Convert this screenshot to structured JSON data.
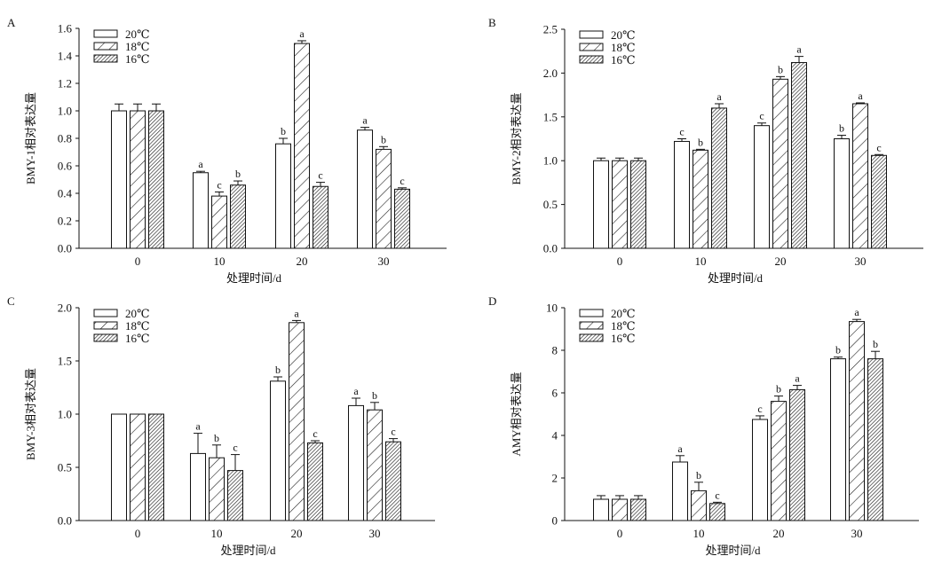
{
  "chart_data": [
    {
      "panel_label": "A",
      "type": "bar",
      "ylabel": "BMY-1相对表达量",
      "xlabel": "处理时间/d",
      "categories": [
        "0",
        "10",
        "20",
        "30"
      ],
      "ylim": [
        0,
        1.6
      ],
      "yticks": [
        "0.0",
        "0.2",
        "0.4",
        "0.6",
        "0.8",
        "1.0",
        "1.2",
        "1.4",
        "1.6"
      ],
      "ystep": 0.2,
      "legend_position": "top-left",
      "series": [
        {
          "name": "20℃",
          "values": [
            1.0,
            0.55,
            0.76,
            0.86
          ],
          "errors": [
            0.05,
            0.01,
            0.04,
            0.02
          ],
          "letters": [
            "",
            "a",
            "b",
            "a"
          ]
        },
        {
          "name": "18℃",
          "values": [
            1.0,
            0.38,
            1.49,
            0.72
          ],
          "errors": [
            0.05,
            0.03,
            0.02,
            0.02
          ],
          "letters": [
            "",
            "c",
            "a",
            "b"
          ]
        },
        {
          "name": "16℃",
          "values": [
            1.0,
            0.46,
            0.45,
            0.43
          ],
          "errors": [
            0.05,
            0.03,
            0.03,
            0.01
          ],
          "letters": [
            "",
            "b",
            "c",
            "c"
          ]
        }
      ]
    },
    {
      "panel_label": "B",
      "type": "bar",
      "ylabel": "BMY-2相对表达量",
      "xlabel": "处理时间/d",
      "categories": [
        "0",
        "10",
        "20",
        "30"
      ],
      "ylim": [
        0,
        2.5
      ],
      "yticks": [
        "0.0",
        "0.5",
        "1.0",
        "1.5",
        "2.0",
        "2.5"
      ],
      "ystep": 0.5,
      "legend_position": "top-left",
      "series": [
        {
          "name": "20℃",
          "values": [
            1.0,
            1.22,
            1.4,
            1.25
          ],
          "errors": [
            0.03,
            0.03,
            0.03,
            0.04
          ],
          "letters": [
            "",
            "c",
            "c",
            "b"
          ]
        },
        {
          "name": "18℃",
          "values": [
            1.0,
            1.12,
            1.93,
            1.65
          ],
          "errors": [
            0.03,
            0.01,
            0.03,
            0.01
          ],
          "letters": [
            "",
            "b",
            "b",
            "a"
          ]
        },
        {
          "name": "16℃",
          "values": [
            1.0,
            1.6,
            2.12,
            1.06
          ],
          "errors": [
            0.03,
            0.05,
            0.07,
            0.01
          ],
          "letters": [
            "",
            "a",
            "a",
            "c"
          ]
        }
      ]
    },
    {
      "panel_label": "C",
      "type": "bar",
      "ylabel": "BMY-3相对表达量",
      "xlabel": "处理时间/d",
      "categories": [
        "0",
        "10",
        "20",
        "30"
      ],
      "ylim": [
        0,
        2.0
      ],
      "yticks": [
        "0.0",
        "0.5",
        "1.0",
        "1.5",
        "2.0"
      ],
      "ystep": 0.5,
      "legend_position": "top-left",
      "series": [
        {
          "name": "20℃",
          "values": [
            1.0,
            0.63,
            1.31,
            1.08
          ],
          "errors": [
            0,
            0.19,
            0.04,
            0.07
          ],
          "letters": [
            "",
            "a",
            "b",
            "a"
          ]
        },
        {
          "name": "18℃",
          "values": [
            1.0,
            0.59,
            1.86,
            1.04
          ],
          "errors": [
            0,
            0.12,
            0.02,
            0.07
          ],
          "letters": [
            "",
            "b",
            "a",
            "b"
          ]
        },
        {
          "name": "16℃",
          "values": [
            1.0,
            0.47,
            0.73,
            0.74
          ],
          "errors": [
            0,
            0.15,
            0.02,
            0.03
          ],
          "letters": [
            "",
            "c",
            "c",
            "c"
          ]
        }
      ]
    },
    {
      "panel_label": "D",
      "type": "bar",
      "ylabel": "AMY相对表达量",
      "xlabel": "处理时间/d",
      "categories": [
        "0",
        "10",
        "20",
        "30"
      ],
      "ylim": [
        0,
        10
      ],
      "yticks": [
        "0",
        "2",
        "4",
        "6",
        "8",
        "10"
      ],
      "ystep": 2,
      "legend_position": "top-left",
      "series": [
        {
          "name": "20℃",
          "values": [
            1.0,
            2.75,
            4.75,
            7.6
          ],
          "errors": [
            0.17,
            0.3,
            0.17,
            0.08
          ],
          "letters": [
            "",
            "a",
            "c",
            "b"
          ]
        },
        {
          "name": "18℃",
          "values": [
            1.0,
            1.4,
            5.6,
            9.35
          ],
          "errors": [
            0.17,
            0.4,
            0.25,
            0.1
          ],
          "letters": [
            "",
            "b",
            "b",
            "a"
          ]
        },
        {
          "name": "16℃",
          "values": [
            1.0,
            0.8,
            6.15,
            7.6
          ],
          "errors": [
            0.17,
            0.06,
            0.2,
            0.35
          ],
          "letters": [
            "",
            "c",
            "a",
            "b"
          ]
        }
      ]
    }
  ]
}
